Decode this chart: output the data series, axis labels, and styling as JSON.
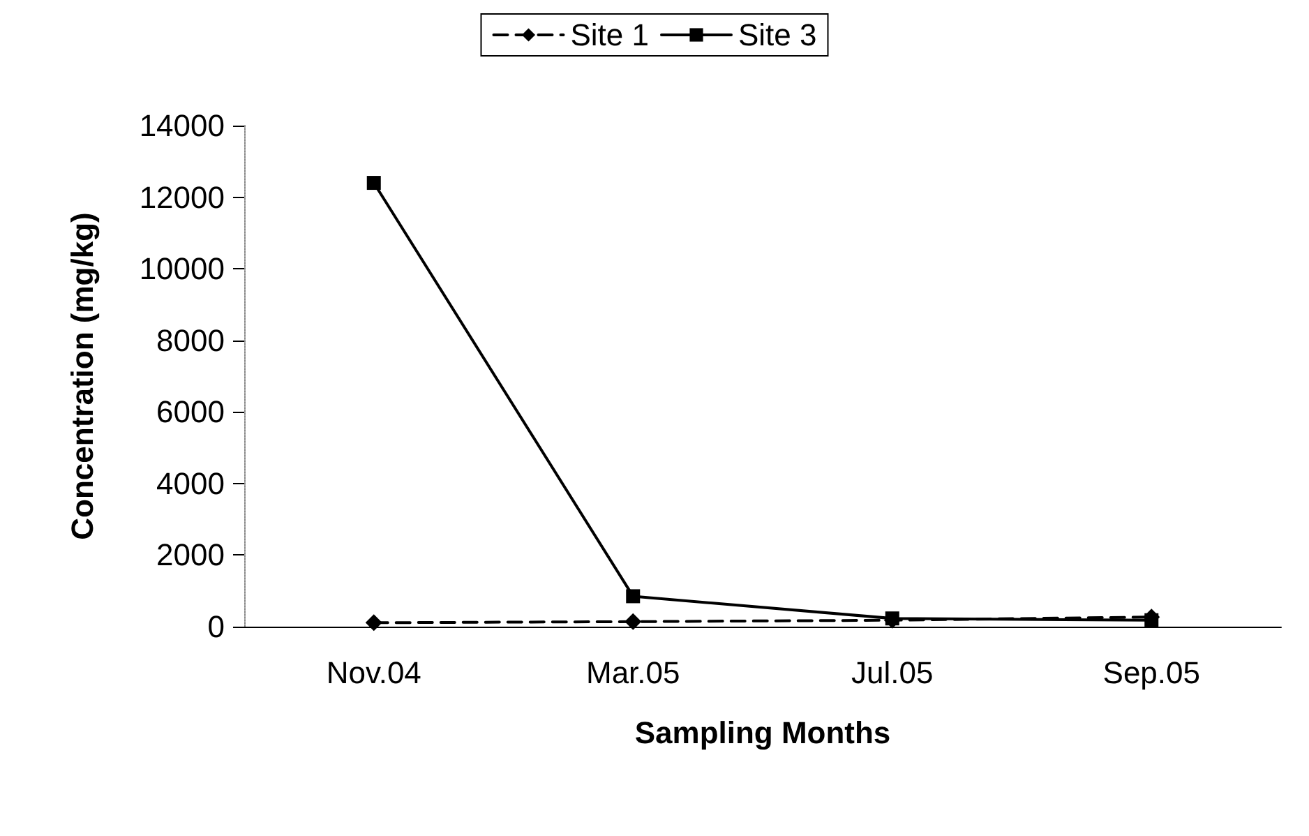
{
  "chart_data": {
    "type": "line",
    "xlabel": "Sampling Months",
    "ylabel": "Concentration (mg/kg)",
    "categories": [
      "Nov.04",
      "Mar.05",
      "Jul.05",
      "Sep.05"
    ],
    "series": [
      {
        "name": "Site 1",
        "color": "#000000",
        "values": [
          110,
          140,
          180,
          270
        ],
        "marker": "diamond",
        "line_style": "dashed"
      },
      {
        "name": "Site 3",
        "color": "#000000",
        "values": [
          12400,
          850,
          230,
          180
        ],
        "marker": "square",
        "line_style": "solid"
      }
    ],
    "ylim": [
      0,
      14000
    ],
    "yticks": [
      0,
      2000,
      4000,
      6000,
      8000,
      10000,
      12000,
      14000
    ],
    "grid": false,
    "legend": "top"
  }
}
